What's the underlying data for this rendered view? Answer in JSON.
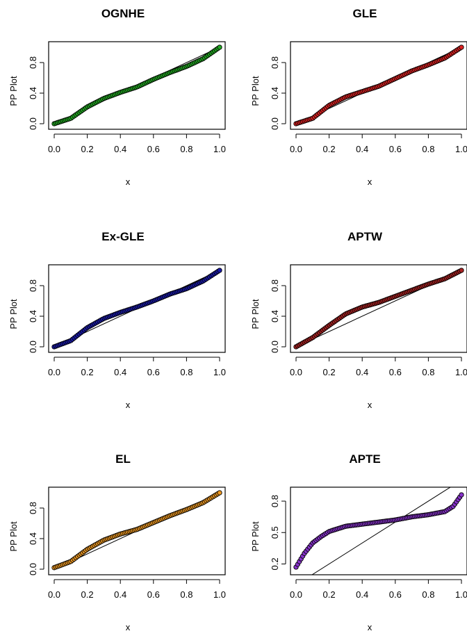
{
  "chart_data": [
    {
      "type": "scatter",
      "title": "OGNHE",
      "xlabel": "x",
      "ylabel": "PP Plot",
      "xlim": [
        0,
        1
      ],
      "ylim": [
        0,
        1
      ],
      "xticks": [
        "0.0",
        "0.2",
        "0.4",
        "0.6",
        "0.8",
        "1.0"
      ],
      "yticks": [
        "0.0",
        "0.4",
        "0.8"
      ],
      "ytick_values": [
        0,
        0.4,
        0.8
      ],
      "point_color": "#22aa22",
      "reference_line": {
        "x": [
          0,
          1
        ],
        "y": [
          0,
          1
        ]
      },
      "series": [
        {
          "x": [
            0.0,
            0.1,
            0.2,
            0.3,
            0.4,
            0.5,
            0.6,
            0.7,
            0.8,
            0.9,
            1.0
          ],
          "y": [
            0.0,
            0.07,
            0.22,
            0.33,
            0.41,
            0.48,
            0.58,
            0.67,
            0.75,
            0.85,
            1.0
          ]
        }
      ]
    },
    {
      "type": "scatter",
      "title": "GLE",
      "xlabel": "x",
      "ylabel": "PP Plot",
      "xlim": [
        0,
        1
      ],
      "ylim": [
        0,
        1
      ],
      "xticks": [
        "0.0",
        "0.2",
        "0.4",
        "0.6",
        "0.8",
        "1.0"
      ],
      "yticks": [
        "0.0",
        "0.4",
        "0.8"
      ],
      "ytick_values": [
        0,
        0.4,
        0.8
      ],
      "point_color": "#dd2222",
      "reference_line": {
        "x": [
          0,
          1
        ],
        "y": [
          0,
          1
        ]
      },
      "series": [
        {
          "x": [
            0.0,
            0.1,
            0.2,
            0.3,
            0.4,
            0.5,
            0.6,
            0.7,
            0.8,
            0.9,
            1.0
          ],
          "y": [
            0.0,
            0.07,
            0.24,
            0.35,
            0.42,
            0.49,
            0.59,
            0.69,
            0.77,
            0.86,
            1.0
          ]
        }
      ]
    },
    {
      "type": "scatter",
      "title": "Ex-GLE",
      "xlabel": "x",
      "ylabel": "PP Plot",
      "xlim": [
        0,
        1
      ],
      "ylim": [
        0,
        1
      ],
      "xticks": [
        "0.0",
        "0.2",
        "0.4",
        "0.6",
        "0.8",
        "1.0"
      ],
      "yticks": [
        "0.0",
        "0.4",
        "0.8"
      ],
      "ytick_values": [
        0,
        0.4,
        0.8
      ],
      "point_color": "#1a1aaa",
      "reference_line": {
        "x": [
          0,
          1
        ],
        "y": [
          0,
          1
        ]
      },
      "series": [
        {
          "x": [
            0.0,
            0.1,
            0.2,
            0.3,
            0.4,
            0.5,
            0.6,
            0.7,
            0.8,
            0.9,
            1.0
          ],
          "y": [
            0.0,
            0.08,
            0.25,
            0.37,
            0.45,
            0.52,
            0.6,
            0.69,
            0.76,
            0.86,
            1.0
          ]
        }
      ]
    },
    {
      "type": "scatter",
      "title": "APTW",
      "xlabel": "x",
      "ylabel": "PP Plot",
      "xlim": [
        0,
        1
      ],
      "ylim": [
        0,
        1
      ],
      "xticks": [
        "0.0",
        "0.2",
        "0.4",
        "0.6",
        "0.8",
        "1.0"
      ],
      "yticks": [
        "0.0",
        "0.4",
        "0.8"
      ],
      "ytick_values": [
        0,
        0.4,
        0.8
      ],
      "point_color": "#aa2222",
      "reference_line": {
        "x": [
          0,
          1
        ],
        "y": [
          0,
          1
        ]
      },
      "series": [
        {
          "x": [
            0.0,
            0.1,
            0.2,
            0.3,
            0.4,
            0.5,
            0.6,
            0.7,
            0.8,
            0.9,
            1.0
          ],
          "y": [
            0.0,
            0.12,
            0.28,
            0.43,
            0.52,
            0.58,
            0.66,
            0.74,
            0.82,
            0.89,
            1.0
          ]
        }
      ]
    },
    {
      "type": "scatter",
      "title": "EL",
      "xlabel": "x",
      "ylabel": "PP Plot",
      "xlim": [
        0,
        1
      ],
      "ylim": [
        0,
        1
      ],
      "xticks": [
        "0.0",
        "0.2",
        "0.4",
        "0.6",
        "0.8",
        "1.0"
      ],
      "yticks": [
        "0.0",
        "0.4",
        "0.8"
      ],
      "ytick_values": [
        0,
        0.4,
        0.8
      ],
      "point_color": "#ee9922",
      "reference_line": {
        "x": [
          0,
          1
        ],
        "y": [
          0,
          1
        ]
      },
      "series": [
        {
          "x": [
            0.0,
            0.1,
            0.2,
            0.3,
            0.4,
            0.5,
            0.6,
            0.7,
            0.8,
            0.9,
            1.0
          ],
          "y": [
            0.02,
            0.1,
            0.26,
            0.38,
            0.46,
            0.52,
            0.61,
            0.7,
            0.78,
            0.87,
            1.0
          ]
        }
      ]
    },
    {
      "type": "scatter",
      "title": "APTE",
      "xlabel": "x",
      "ylabel": "PP Plot",
      "xlim": [
        0,
        1
      ],
      "ylim": [
        0.15,
        0.88
      ],
      "xticks": [
        "0.0",
        "0.2",
        "0.4",
        "0.6",
        "0.8",
        "1.0"
      ],
      "yticks": [
        "0.2",
        "0.5",
        "0.8"
      ],
      "ytick_values": [
        0.2,
        0.5,
        0.8
      ],
      "point_color": "#8833cc",
      "reference_line": {
        "x": [
          0,
          1
        ],
        "y": [
          0,
          1
        ]
      },
      "series": [
        {
          "x": [
            0.0,
            0.05,
            0.1,
            0.15,
            0.2,
            0.3,
            0.4,
            0.5,
            0.6,
            0.7,
            0.8,
            0.9,
            0.95,
            1.0
          ],
          "y": [
            0.17,
            0.3,
            0.4,
            0.46,
            0.51,
            0.56,
            0.58,
            0.6,
            0.62,
            0.65,
            0.67,
            0.7,
            0.75,
            0.86
          ]
        }
      ]
    }
  ]
}
